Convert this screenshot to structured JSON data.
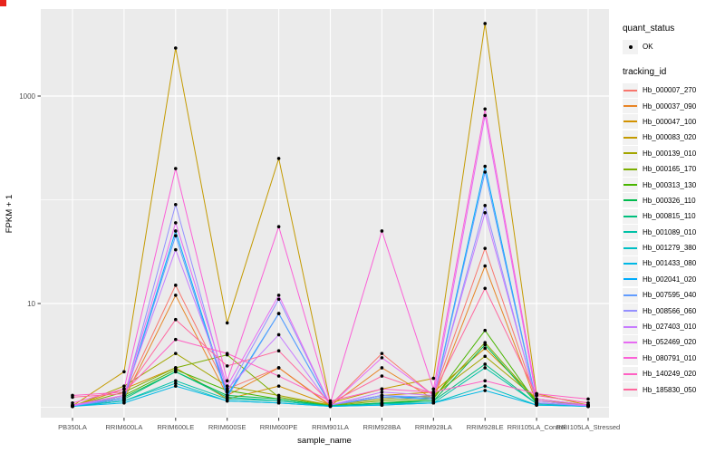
{
  "chart_data": {
    "type": "line",
    "title": "",
    "xlabel": "sample_name",
    "ylabel": "FPKM + 1",
    "x_categories": [
      "PB350LA",
      "RRIM600LA",
      "RRIM600LE",
      "RRIM600SE",
      "RRIM600PE",
      "RRIM901LA",
      "RRIM928BA",
      "RRIM928LA",
      "RRIM928LE",
      "RRII105LA_Control",
      "RRII105LA_Stressed"
    ],
    "y_scale": "log10",
    "y_tick_labels": [
      "10",
      "1000"
    ],
    "y_ticks": [
      10,
      1000
    ],
    "y_minor_ticks": [
      1,
      100
    ],
    "ylim": [
      0.8,
      6900
    ],
    "grid": true,
    "legend_position": "right",
    "panel_bg": "#EBEBEB",
    "grid_color": "#FFFFFF",
    "axis_text_color": "#4D4D4D",
    "point_color": "#000000",
    "legend": {
      "quant_status": {
        "title": "quant_status",
        "items": [
          {
            "label": "OK"
          }
        ]
      },
      "tracking_id": {
        "title": "tracking_id"
      }
    },
    "series": [
      {
        "name": "Hb_000007_270",
        "color": "#F8766D",
        "values": [
          1.05,
          1.3,
          15,
          1.5,
          2.4,
          1.05,
          3.3,
          1.3,
          34,
          1.15,
          1.05
        ]
      },
      {
        "name": "Hb_000037_090",
        "color": "#E88526",
        "values": [
          1.02,
          1.2,
          12,
          1.3,
          2.4,
          1.03,
          2.4,
          1.2,
          23,
          1.1,
          1.02
        ]
      },
      {
        "name": "Hb_000047_100",
        "color": "#D39200",
        "values": [
          1.02,
          1.5,
          2.4,
          1.2,
          1.6,
          1.05,
          1.3,
          1.4,
          3.7,
          1.2,
          1.05
        ]
      },
      {
        "name": "Hb_000083_020",
        "color": "#C49A00",
        "values": [
          1.03,
          2.2,
          2900,
          6.5,
          250,
          1.1,
          1.5,
          1.9,
          5000,
          1.35,
          1.05
        ]
      },
      {
        "name": "Hb_000139_010",
        "color": "#A3A500",
        "values": [
          1.02,
          1.6,
          3.3,
          1.6,
          1.3,
          1.05,
          1.2,
          1.3,
          3.1,
          1.2,
          1.03
        ]
      },
      {
        "name": "Hb_000165_170",
        "color": "#7CAE00",
        "values": [
          1.02,
          1.4,
          2.4,
          3.2,
          1.25,
          1.04,
          1.15,
          1.25,
          4.2,
          1.15,
          1.03
        ]
      },
      {
        "name": "Hb_000313_130",
        "color": "#49B500",
        "values": [
          1.02,
          1.3,
          2.3,
          1.45,
          1.2,
          1.03,
          1.1,
          1.2,
          5.5,
          1.1,
          1.02
        ]
      },
      {
        "name": "Hb_000326_110",
        "color": "#00BB4E",
        "values": [
          1.02,
          1.25,
          2.2,
          1.3,
          1.2,
          1.03,
          1.1,
          1.15,
          4.0,
          1.1,
          1.02
        ]
      },
      {
        "name": "Hb_000815_110",
        "color": "#00BF7D",
        "values": [
          1.02,
          1.2,
          2.2,
          1.25,
          1.15,
          1.03,
          1.08,
          1.15,
          2.6,
          1.08,
          1.02
        ]
      },
      {
        "name": "Hb_001089_010",
        "color": "#00C1A7",
        "values": [
          1.02,
          1.15,
          1.8,
          1.2,
          1.15,
          1.02,
          1.08,
          1.1,
          2.4,
          1.08,
          1.02
        ]
      },
      {
        "name": "Hb_001279_380",
        "color": "#00BFC4",
        "values": [
          1.02,
          1.15,
          1.7,
          1.15,
          1.1,
          1.02,
          1.05,
          1.1,
          1.6,
          1.05,
          1.02
        ]
      },
      {
        "name": "Hb_001433_080",
        "color": "#00B8E5",
        "values": [
          1.02,
          1.1,
          1.6,
          1.15,
          1.1,
          1.02,
          1.05,
          1.1,
          1.45,
          1.05,
          1.02
        ]
      },
      {
        "name": "Hb_002041_020",
        "color": "#00ACFC",
        "values": [
          1.03,
          1.2,
          50,
          1.3,
          8,
          1.05,
          1.3,
          1.2,
          210,
          1.1,
          1.03
        ]
      },
      {
        "name": "Hb_007595_040",
        "color": "#619CFF",
        "values": [
          1.03,
          1.2,
          45,
          1.25,
          8,
          1.05,
          1.25,
          1.2,
          185,
          1.1,
          1.03
        ]
      },
      {
        "name": "Hb_008566_060",
        "color": "#9590FF",
        "values": [
          1.03,
          1.25,
          90,
          1.4,
          11,
          1.05,
          1.3,
          1.25,
          88,
          1.1,
          1.03
        ]
      },
      {
        "name": "Hb_027403_010",
        "color": "#C77CFF",
        "values": [
          1.03,
          1.3,
          33,
          1.5,
          5,
          1.05,
          1.4,
          1.3,
          75,
          1.15,
          1.03
        ]
      },
      {
        "name": "Hb_052469_020",
        "color": "#E76BF3",
        "values": [
          1.05,
          1.3,
          60,
          1.6,
          12,
          1.05,
          3,
          1.3,
          650,
          1.2,
          1.05
        ]
      },
      {
        "name": "Hb_080791_010",
        "color": "#FB61D7",
        "values": [
          1.1,
          1.5,
          200,
          1.8,
          55,
          1.1,
          50,
          1.5,
          750,
          1.3,
          1.1
        ]
      },
      {
        "name": "Hb_140249_020",
        "color": "#FF61C3",
        "values": [
          1.3,
          1.4,
          4.5,
          3.3,
          2.0,
          1.15,
          1.5,
          1.4,
          1.8,
          1.35,
          1.2
        ]
      },
      {
        "name": "Hb_185830_050",
        "color": "#FF689E",
        "values": [
          1.25,
          1.35,
          7,
          2.5,
          3.5,
          1.1,
          2.0,
          1.35,
          14,
          1.3,
          1.1
        ]
      }
    ]
  }
}
